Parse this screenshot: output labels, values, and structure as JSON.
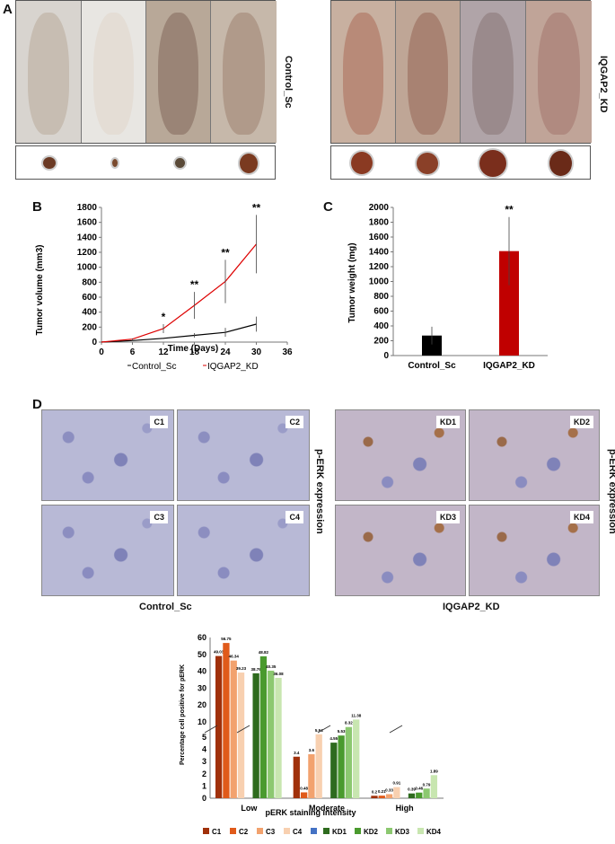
{
  "panels": {
    "a": "A",
    "b": "B",
    "c": "C",
    "d": "D"
  },
  "panel_a": {
    "control_label": "Control_Sc",
    "kd_label": "IQGAP2_KD"
  },
  "panel_d": {
    "tiles_control": [
      "C1",
      "C2",
      "C3",
      "C4"
    ],
    "tiles_kd": [
      "KD1",
      "KD2",
      "KD3",
      "KD4"
    ],
    "side_label": "p-ERK expression",
    "caption_control": "Control_Sc",
    "caption_kd": "IQGAP2_KD"
  },
  "chart_data": [
    {
      "type": "line",
      "xlabel": "Time (Days)",
      "ylabel": "Tumor volume (mm3)",
      "xlim": [
        0,
        36
      ],
      "ylim": [
        0,
        1800
      ],
      "xticks": [
        0,
        6,
        12,
        18,
        24,
        30,
        36
      ],
      "yticks": [
        0,
        200,
        400,
        600,
        800,
        1000,
        1200,
        1400,
        1600,
        1800
      ],
      "x": [
        0,
        6,
        12,
        18,
        24,
        30
      ],
      "series": [
        {
          "name": "Control_Sc",
          "color": "#000000",
          "values": [
            0,
            20,
            50,
            90,
            130,
            240
          ],
          "err": [
            0,
            5,
            10,
            30,
            60,
            100
          ]
        },
        {
          "name": "IQGAP2_KD",
          "color": "#dd0000",
          "values": [
            0,
            40,
            180,
            490,
            810,
            1310
          ],
          "err": [
            0,
            10,
            60,
            180,
            290,
            390
          ]
        }
      ],
      "annotations": [
        {
          "x": 12,
          "text": "*"
        },
        {
          "x": 18,
          "text": "**"
        },
        {
          "x": 24,
          "text": "**"
        },
        {
          "x": 30,
          "text": "**"
        }
      ],
      "legend": "bottom"
    },
    {
      "type": "bar",
      "ylabel": "Tumor weight (mg)",
      "categories": [
        "Control_Sc",
        "IQGAP2_KD"
      ],
      "values": [
        270,
        1410
      ],
      "err": [
        120,
        460
      ],
      "colors": [
        "#000000",
        "#c00000"
      ],
      "ylim": [
        0,
        2000
      ],
      "yticks": [
        0,
        200,
        400,
        600,
        800,
        1000,
        1200,
        1400,
        1600,
        1800,
        2000
      ],
      "annotations": [
        {
          "category": "IQGAP2_KD",
          "text": "**"
        }
      ]
    },
    {
      "type": "bar",
      "xlabel": "pERK staining intensity",
      "ylabel": "Percentage cell positive for pERK",
      "categories": [
        "Low",
        "Moderate",
        "High"
      ],
      "upper_yticks": [
        10,
        20,
        30,
        40,
        50,
        60
      ],
      "lower_yticks": [
        0,
        1,
        2,
        3,
        4,
        5
      ],
      "axis_break": [
        5,
        10
      ],
      "series": [
        {
          "name": "C1",
          "color": "#a0300a",
          "values": [
            49.03,
            3.4,
            0.2
          ]
        },
        {
          "name": "C2",
          "color": "#e05a1a",
          "values": [
            56.75,
            0.48,
            0.21
          ]
        },
        {
          "name": "C3",
          "color": "#f2a26e",
          "values": [
            46.34,
            3.6,
            0.33
          ]
        },
        {
          "name": "C4",
          "color": "#f8d0b0",
          "values": [
            39.23,
            5.94,
            0.91
          ]
        },
        {
          "name": "",
          "color": "#4472c4",
          "values": [
            null,
            null,
            null
          ]
        },
        {
          "name": "KD1",
          "color": "#2e6b1e",
          "values": [
            38.79,
            4.55,
            0.39
          ]
        },
        {
          "name": "KD2",
          "color": "#4a9a2e",
          "values": [
            48.82,
            5.53,
            0.46
          ]
        },
        {
          "name": "KD3",
          "color": "#8cc870",
          "values": [
            40.35,
            8.32,
            0.79
          ]
        },
        {
          "name": "KD4",
          "color": "#c8e6b0",
          "values": [
            36.08,
            11.38,
            1.89
          ]
        }
      ],
      "value_labels": {
        "Low": [
          "49.03",
          "56.75",
          "46.34",
          "39.23",
          "",
          "38.79",
          "48.82",
          "40.35",
          "36.08"
        ],
        "Moderate": [
          "3.4",
          "0.48",
          "3.6",
          "5.94",
          "",
          "4.55",
          "5.53",
          "8.32",
          "11.38"
        ],
        "High": [
          "0.2",
          "0.21",
          "0.33",
          "0.91",
          "",
          "0.39",
          "0.46",
          "0.79",
          "1.89"
        ]
      },
      "legend": "bottom"
    }
  ]
}
